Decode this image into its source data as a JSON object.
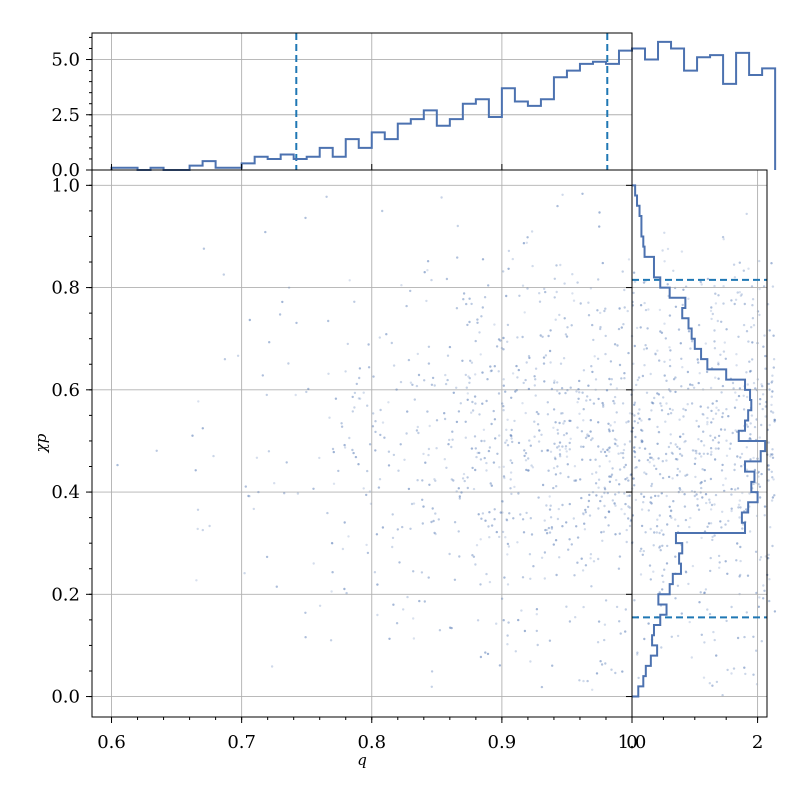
{
  "chart_data": {
    "type": "scatter",
    "xlabel": "q",
    "ylabel": "χp",
    "xlim": [
      0.585,
      1.0
    ],
    "ylim": [
      -0.04,
      1.03
    ],
    "xticks": [
      "0.6",
      "0.7",
      "0.8",
      "0.9",
      "1.0"
    ],
    "yticks": [
      "0.0",
      "0.2",
      "0.4",
      "0.6",
      "0.8",
      "1.0"
    ],
    "grid": true,
    "color": "#4c72b0",
    "quantile_color": "#1f77b4",
    "top_histogram": {
      "yticks": [
        "0.0",
        "2.5",
        "5.0"
      ],
      "ylim": [
        0,
        6.2
      ],
      "bin_edges_start": 0.6,
      "bin_width": 0.01,
      "counts": [
        0.1,
        0.1,
        0.0,
        0.1,
        0.0,
        0.0,
        0.2,
        0.4,
        0.1,
        0.1,
        0.3,
        0.6,
        0.5,
        0.7,
        0.5,
        0.6,
        1.0,
        0.6,
        1.4,
        1.0,
        1.7,
        1.4,
        2.1,
        2.3,
        2.7,
        2.0,
        2.3,
        3.0,
        3.2,
        2.4,
        3.7,
        3.1,
        2.9,
        3.2,
        4.2,
        4.5,
        4.8,
        4.9,
        4.8,
        5.4,
        5.5,
        5.0,
        5.8,
        5.5,
        4.5,
        5.1,
        5.2,
        3.9,
        5.3,
        4.3,
        4.6
      ],
      "quantiles": [
        0.742,
        0.981
      ]
    },
    "right_histogram": {
      "xticks": [
        "0",
        "2"
      ],
      "xlim": [
        0,
        2.15
      ],
      "bin_edges_start": 0.0,
      "bin_width": 0.02,
      "counts": [
        0.1,
        0.18,
        0.22,
        0.3,
        0.4,
        0.32,
        0.35,
        0.45,
        0.55,
        0.42,
        0.6,
        0.65,
        0.78,
        0.75,
        0.8,
        0.7,
        1.8,
        1.75,
        1.85,
        2.0,
        1.9,
        1.95,
        1.8,
        2.05,
        2.12,
        1.7,
        1.8,
        1.85,
        1.9,
        1.88,
        1.8,
        1.5,
        1.2,
        1.1,
        1.0,
        0.95,
        0.9,
        0.8,
        0.85,
        0.6,
        0.45,
        0.35,
        0.35,
        0.2,
        0.18,
        0.15,
        0.15,
        0.12,
        0.08,
        0.05
      ],
      "quantiles": [
        0.155,
        0.815
      ]
    },
    "points_count": 1500
  }
}
